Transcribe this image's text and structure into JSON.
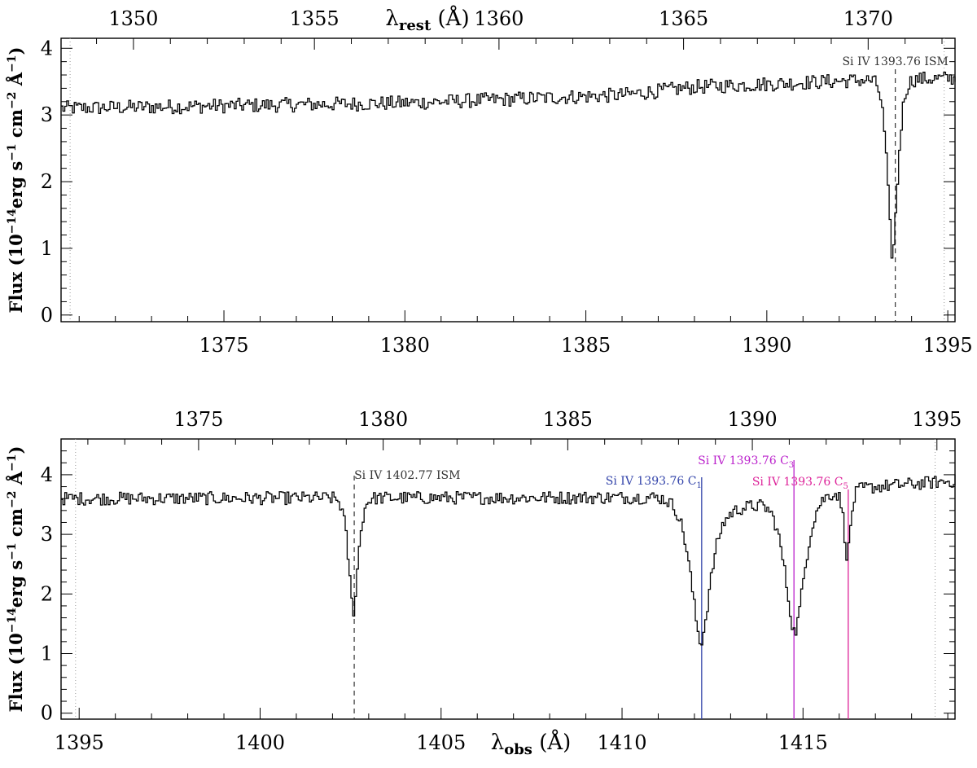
{
  "chart_data": [
    {
      "type": "line",
      "panel": "top",
      "ylabel_main": "Flux (10",
      "ylabel_exp1": "−14",
      "ylabel_mid": "erg s",
      "ylabel_exp2": "−1",
      "ylabel_mid2": " cm",
      "ylabel_exp3": "−2",
      "ylabel_mid3": " Å",
      "ylabel_exp4": "−1",
      "ylabel_end": ")",
      "top_axis_label_main": "λ",
      "top_axis_label_sub": "rest",
      "top_axis_label_unit": " (Å)",
      "xlim": [
        1370.5,
        1395.2
      ],
      "ylim": [
        -0.1,
        4.15
      ],
      "x_ticks": [
        "1375",
        "1380",
        "1385",
        "1390",
        "1395"
      ],
      "x_tick_values": [
        1375,
        1380,
        1385,
        1390,
        1395
      ],
      "top_ticks": [
        "1350",
        "1355",
        "1360",
        "1365",
        "1370"
      ],
      "top_tick_positions_obs": [
        1372.5,
        1377.5,
        1382.6,
        1387.7,
        1392.8
      ],
      "y_ticks": [
        "0",
        "1",
        "2",
        "3",
        "4"
      ],
      "y_tick_values": [
        0,
        1,
        2,
        3,
        4
      ],
      "continuum": [
        [
          1370.5,
          3.1
        ],
        [
          1380,
          3.18
        ],
        [
          1386,
          3.3
        ],
        [
          1388,
          3.42
        ],
        [
          1392.5,
          3.52
        ],
        [
          1395.2,
          3.55
        ]
      ],
      "absorptions": [
        {
          "center": 1393.45,
          "depth": 2.65,
          "width": 0.16
        }
      ],
      "dotted_lines_x": [
        1370.75,
        1394.9
      ],
      "annotations": [
        {
          "text": "Si IV 1393.76 ISM",
          "x": 1393.55,
          "color": "#333333",
          "line_style": "dashed"
        }
      ]
    },
    {
      "type": "line",
      "panel": "bottom",
      "ylabel_main": "Flux (10",
      "ylabel_exp1": "−14",
      "ylabel_mid": "erg s",
      "ylabel_exp2": "−1",
      "ylabel_mid2": " cm",
      "ylabel_exp3": "−2",
      "ylabel_mid3": " Å",
      "ylabel_exp4": "−1",
      "ylabel_end": ")",
      "xlabel_main": "λ",
      "xlabel_sub": "obs",
      "xlabel_unit": " (Å)",
      "xlim": [
        1394.5,
        1419.2
      ],
      "ylim": [
        -0.1,
        4.6
      ],
      "x_ticks": [
        "1395",
        "1400",
        "1405",
        "1410",
        "1415"
      ],
      "x_tick_values": [
        1395,
        1400,
        1405,
        1410,
        1415
      ],
      "top_ticks": [
        "1375",
        "1380",
        "1385",
        "1390",
        "1395"
      ],
      "top_tick_positions_obs": [
        1398.3,
        1403.4,
        1408.5,
        1413.6,
        1418.7
      ],
      "y_ticks": [
        "0",
        "1",
        "2",
        "3",
        "4"
      ],
      "y_tick_values": [
        0,
        1,
        2,
        3,
        4
      ],
      "continuum": [
        [
          1394.5,
          3.6
        ],
        [
          1411,
          3.62
        ],
        [
          1412.9,
          3.4
        ],
        [
          1414.2,
          3.55
        ],
        [
          1417,
          3.8
        ],
        [
          1419.2,
          3.9
        ]
      ],
      "absorptions": [
        {
          "center": 1402.55,
          "depth": 1.9,
          "width": 0.15
        },
        {
          "center": 1412.15,
          "depth": 2.3,
          "width": 0.3
        },
        {
          "center": 1414.75,
          "depth": 2.25,
          "width": 0.3
        },
        {
          "center": 1416.2,
          "depth": 1.1,
          "width": 0.1
        }
      ],
      "dotted_lines_x": [
        1394.9,
        1418.65
      ],
      "annotations": [
        {
          "text": "Si IV 1402.77 ISM",
          "sub": "",
          "x": 1402.6,
          "color": "#333333",
          "line_style": "dashed"
        },
        {
          "text": "Si IV 1393.76 C",
          "sub": "1",
          "x": 1412.2,
          "color": "#3344aa",
          "line_style": "solid"
        },
        {
          "text": "Si IV 1393.76 C",
          "sub": "3",
          "x": 1414.75,
          "color": "#bb22cc",
          "line_style": "solid"
        },
        {
          "text": "Si IV 1393.76 C",
          "sub": "5",
          "x": 1416.25,
          "color": "#dd2299",
          "line_style": "solid"
        }
      ]
    }
  ]
}
